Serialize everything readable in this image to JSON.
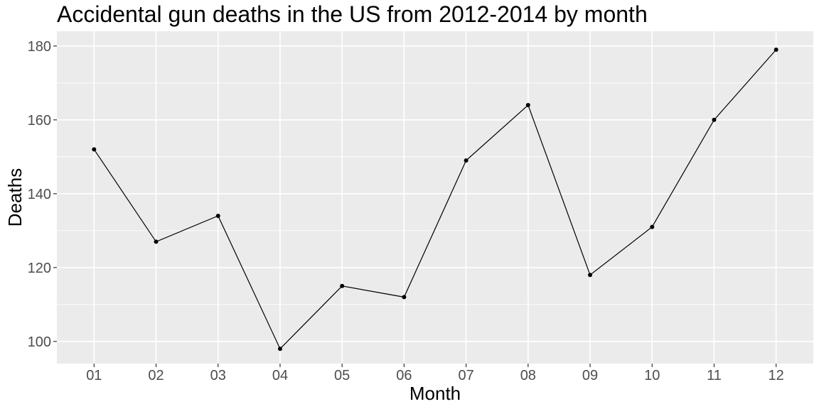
{
  "chart_data": {
    "type": "line",
    "title": "Accidental gun deaths in the US from 2012-2014 by month",
    "xlabel": "Month",
    "ylabel": "Deaths",
    "categories": [
      "01",
      "02",
      "03",
      "04",
      "05",
      "06",
      "07",
      "08",
      "09",
      "10",
      "11",
      "12"
    ],
    "series": [
      {
        "values": [
          152,
          127,
          134,
          98,
          115,
          112,
          149,
          164,
          118,
          131,
          160,
          179
        ]
      }
    ],
    "ylim": [
      94,
      184
    ],
    "yticks": [
      100,
      120,
      140,
      160,
      180
    ],
    "ytick_labels": [
      "100",
      "120",
      "140",
      "160",
      "180"
    ],
    "grid": true,
    "panel_background": "#ebebeb",
    "grid_color": "#ffffff",
    "line_color": "#000000",
    "point_color": "#000000"
  }
}
